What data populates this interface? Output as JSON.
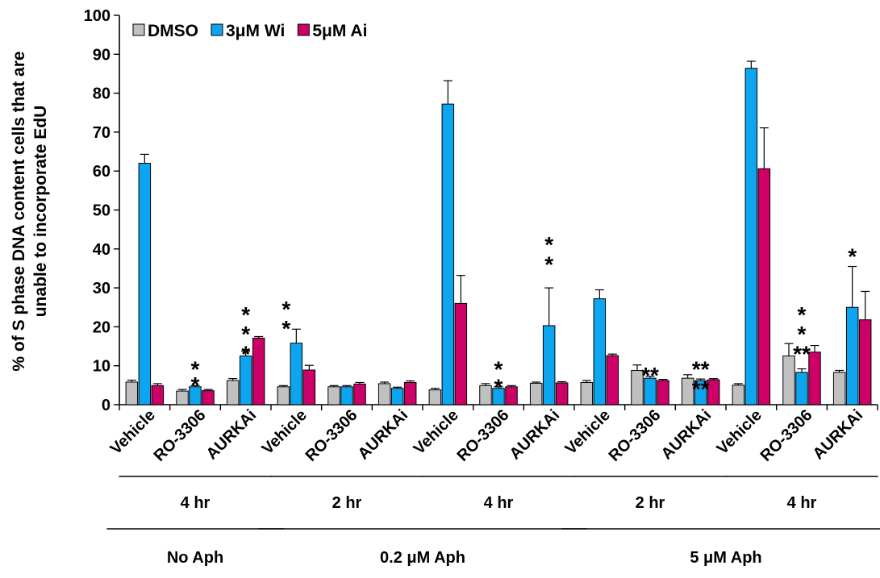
{
  "chart_data": {
    "type": "bar",
    "ylabel": "% of S phase DNA content cells that are unable to incorporate EdU",
    "ylabel_lines": [
      "% of S phase DNA content cells that are",
      "unable to incorporate EdU"
    ],
    "ylim": [
      0,
      100
    ],
    "yticks": [
      "0",
      "10",
      "20",
      "30",
      "40",
      "50",
      "60",
      "70",
      "80",
      "90",
      "100"
    ],
    "categories": [
      "Vehicle",
      "RO-3306",
      "AURKAi",
      "Vehicle",
      "RO-3306",
      "AURKAi",
      "Vehicle",
      "RO-3306",
      "AURKAi",
      "Vehicle",
      "RO-3306",
      "AURKAi",
      "Vehicle",
      "RO-3306",
      "AURKAi"
    ],
    "legend_position": "top-left",
    "series": [
      {
        "name": "DMSO",
        "color": "#c0c0c0",
        "values": [
          5.8,
          3.5,
          6.2,
          4.6,
          4.6,
          5.4,
          3.8,
          4.9,
          5.5,
          5.7,
          8.8,
          6.8,
          5.0,
          12.5,
          8.3
        ],
        "errors": [
          0.5,
          0.4,
          0.5,
          0.3,
          0.3,
          0.4,
          0.4,
          0.5,
          0.3,
          0.5,
          1.4,
          0.9,
          0.4,
          3.2,
          0.5
        ]
      },
      {
        "name": "3μM Wi",
        "color": "#0ea5f0",
        "values": [
          62.0,
          4.6,
          12.5,
          15.8,
          4.6,
          4.2,
          77.2,
          4.2,
          20.3,
          27.2,
          6.8,
          6.2,
          86.4,
          8.3,
          25.0
        ],
        "errors": [
          2.3,
          0.3,
          1.2,
          3.6,
          0.3,
          0.3,
          6.0,
          0.4,
          9.7,
          2.3,
          0.5,
          0.4,
          1.8,
          0.9,
          10.5
        ]
      },
      {
        "name": "5μM Ai",
        "color": "#cc0066",
        "values": [
          4.9,
          3.6,
          17.1,
          8.9,
          5.3,
          5.7,
          26.0,
          4.6,
          5.6,
          12.6,
          6.2,
          6.4,
          60.6,
          13.5,
          21.8
        ],
        "errors": [
          0.5,
          0.3,
          0.4,
          1.2,
          0.4,
          0.4,
          7.2,
          0.3,
          0.3,
          0.4,
          0.3,
          0.3,
          10.5,
          1.7,
          7.3
        ]
      }
    ],
    "annotations": [
      {
        "category_index": 1,
        "text": "*",
        "level": 10
      },
      {
        "category_index": 1,
        "text": "*",
        "level": 6
      },
      {
        "category_index": 2,
        "text": "*",
        "level": 24
      },
      {
        "category_index": 2,
        "text": "*",
        "level": 19
      },
      {
        "category_index": 2,
        "text": "*",
        "level": 14
      },
      {
        "category_index": 2,
        "text": "*",
        "level": 25.5,
        "offset": 0.8
      },
      {
        "category_index": 2,
        "text": "*",
        "level": 20.5,
        "offset": 0.8
      },
      {
        "category_index": 7,
        "text": "*",
        "level": 10
      },
      {
        "category_index": 7,
        "text": "*",
        "level": 5.5
      },
      {
        "category_index": 8,
        "text": "*",
        "level": 42
      },
      {
        "category_index": 8,
        "text": "*",
        "level": 37
      },
      {
        "category_index": 10,
        "text": "**",
        "level": 8.5
      },
      {
        "category_index": 11,
        "text": "**",
        "level": 10
      },
      {
        "category_index": 11,
        "text": "**",
        "level": 5
      },
      {
        "category_index": 13,
        "text": "*",
        "level": 24
      },
      {
        "category_index": 13,
        "text": "*",
        "level": 19
      },
      {
        "category_index": 13,
        "text": "**",
        "level": 14
      },
      {
        "category_index": 14,
        "text": "*",
        "level": 39
      },
      {
        "category_index": 14,
        "text": "*",
        "level": 32,
        "offset": 0.8
      }
    ],
    "time_groups": [
      {
        "label": "4 hr",
        "span": [
          0,
          2
        ]
      },
      {
        "label": "2 hr",
        "span": [
          3,
          5
        ]
      },
      {
        "label": "4 hr",
        "span": [
          6,
          8
        ]
      },
      {
        "label": "2 hr",
        "span": [
          9,
          11
        ]
      },
      {
        "label": "4 hr",
        "span": [
          12,
          14
        ]
      }
    ],
    "treatment_groups": [
      {
        "label": "No Aph",
        "span": [
          0,
          2
        ]
      },
      {
        "label": "0.2 μM Aph",
        "span": [
          3,
          8
        ]
      },
      {
        "label": "5 μM Aph",
        "span": [
          9,
          14
        ]
      }
    ]
  }
}
